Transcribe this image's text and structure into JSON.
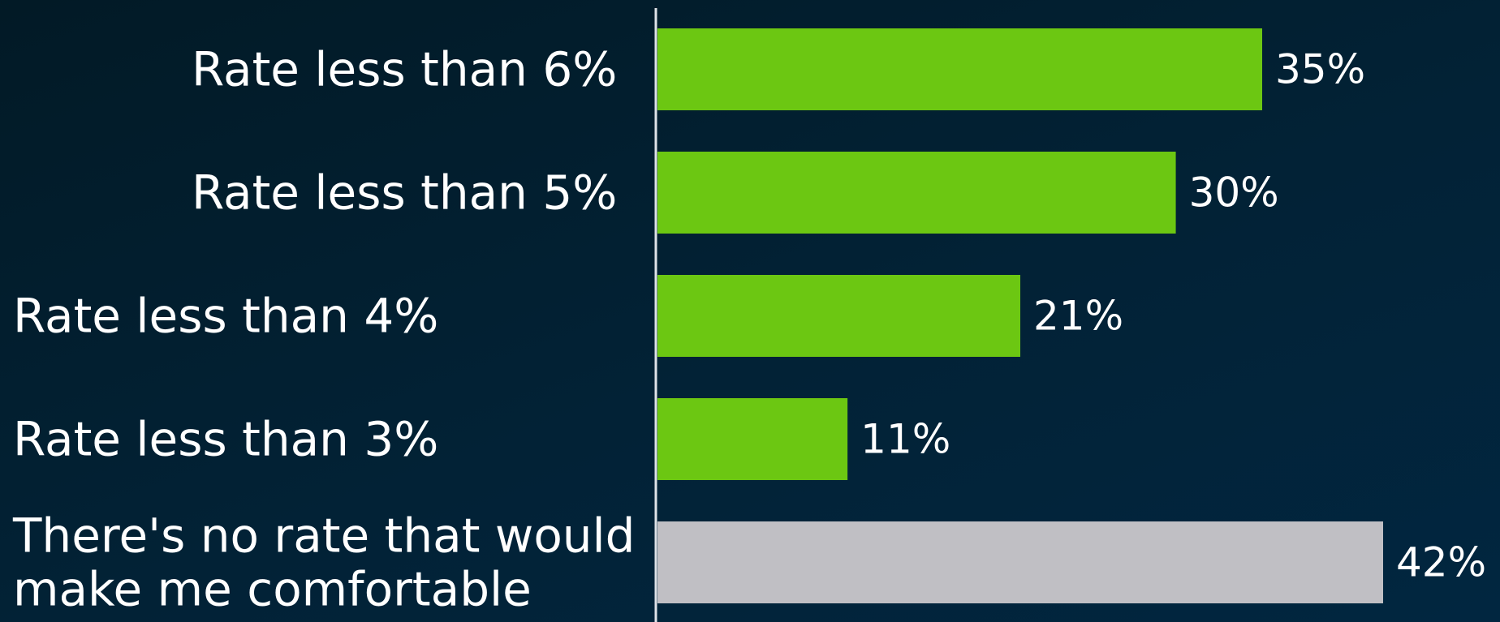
{
  "chart_data": {
    "type": "bar",
    "orientation": "horizontal",
    "categories": [
      "Rate less than 6%",
      "Rate less than 5%",
      "Rate less than 4%",
      "Rate less than 3%",
      "There's no rate that would make me comfortable"
    ],
    "category_lines": [
      [
        "Rate less than 6%"
      ],
      [
        "Rate less than 5%"
      ],
      [
        "Rate less than 4%"
      ],
      [
        "Rate less than 3%"
      ],
      [
        "There's no rate that would",
        "make me comfortable"
      ]
    ],
    "values": [
      35,
      30,
      21,
      11,
      42
    ],
    "value_labels": [
      "35%",
      "30%",
      "21%",
      "11%",
      "42%"
    ],
    "bar_colors": [
      "#6cc712",
      "#6cc712",
      "#6cc712",
      "#6cc712",
      "#c0bfc4"
    ],
    "title": "",
    "xlabel": "",
    "ylabel": "",
    "xlim": [
      0,
      42
    ],
    "grid": false,
    "legend": "none"
  },
  "colors": {
    "axis_line": "#dfe3e8",
    "text": "#ffffff"
  }
}
